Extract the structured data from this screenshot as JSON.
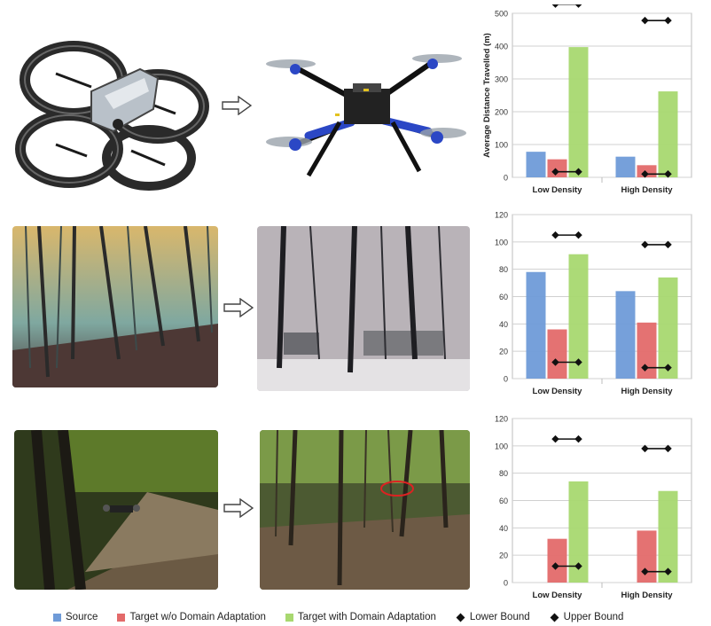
{
  "colors": {
    "source": "#6f9bd8",
    "target_wo": "#e36a6a",
    "target_with": "#a8d870",
    "bound": "#111111",
    "grid": "#d0d0d0"
  },
  "legend": {
    "source": "Source",
    "target_wo": "Target w/o Domain Adaptation",
    "target_with": "Target with Domain Adaptation",
    "lower": "Lower Bound",
    "upper": "Upper Bound"
  },
  "chart_data": [
    {
      "type": "bar",
      "title": "",
      "xlabel": "",
      "ylabel": "Average Distance Travelled (m)",
      "ylim": [
        0,
        500
      ],
      "yticks": [
        0,
        100,
        200,
        300,
        400,
        500
      ],
      "categories": [
        "Low Density",
        "High Density"
      ],
      "series": [
        {
          "name": "Source",
          "values": [
            78,
            63
          ]
        },
        {
          "name": "Target w/o Domain Adaptation",
          "values": [
            55,
            37
          ]
        },
        {
          "name": "Target with Domain Adaptation",
          "values": [
            397,
            262
          ]
        }
      ],
      "lower_bound": [
        17,
        10
      ],
      "upper_bound": [
        528,
        478
      ],
      "grid": true
    },
    {
      "type": "bar",
      "title": "",
      "xlabel": "",
      "ylabel": "",
      "ylim": [
        0,
        120
      ],
      "yticks": [
        0,
        20,
        40,
        60,
        80,
        100,
        120
      ],
      "categories": [
        "Low Density",
        "High Density"
      ],
      "series": [
        {
          "name": "Source",
          "values": [
            78,
            64
          ]
        },
        {
          "name": "Target w/o Domain Adaptation",
          "values": [
            36,
            41
          ]
        },
        {
          "name": "Target with Domain Adaptation",
          "values": [
            91,
            74
          ]
        }
      ],
      "lower_bound": [
        12,
        8
      ],
      "upper_bound": [
        105,
        98
      ],
      "grid": true
    },
    {
      "type": "bar",
      "title": "",
      "xlabel": "",
      "ylabel": "",
      "ylim": [
        0,
        120
      ],
      "yticks": [
        0,
        20,
        40,
        60,
        80,
        100,
        120
      ],
      "categories": [
        "Low Density",
        "High Density"
      ],
      "series": [
        {
          "name": "Source",
          "values": [
            null,
            null
          ]
        },
        {
          "name": "Target w/o Domain Adaptation",
          "values": [
            32,
            38
          ]
        },
        {
          "name": "Target with Domain Adaptation",
          "values": [
            74,
            67
          ]
        }
      ],
      "lower_bound": [
        12,
        8
      ],
      "upper_bound": [
        105,
        98
      ],
      "grid": true
    }
  ]
}
